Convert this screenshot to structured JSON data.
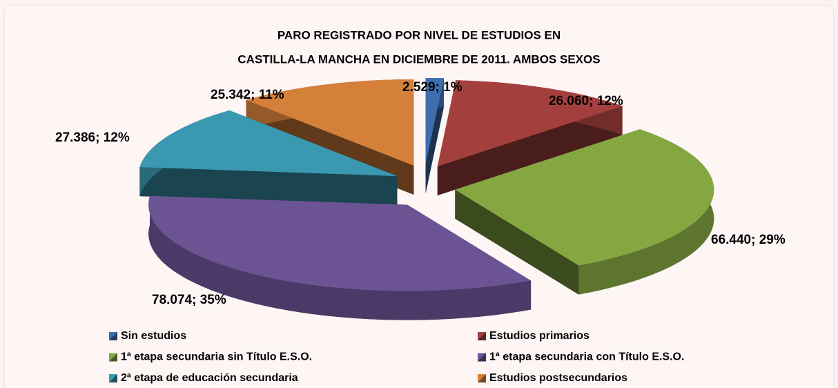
{
  "chart_data": {
    "type": "pie3d",
    "title": [
      "PARO REGISTRADO POR NIVEL DE ESTUDIOS EN",
      "CASTILLA-LA MANCHA EN DICIEMBRE DE 2011. AMBOS SEXOS"
    ],
    "categories": [
      "Sin estudios",
      "Estudios primarios",
      "1ª etapa secundaria sin Título E.S.O.",
      "1ª etapa secundaria con Título E.S.O.",
      "2ª etapa de educación secundaria",
      "Estudios postsecundarios"
    ],
    "values": [
      2529,
      26060,
      66440,
      78074,
      27386,
      25342
    ],
    "value_labels": [
      "2.529; 1%",
      "26.060; 12%",
      "66.440; 29%",
      "78.074; 35%",
      "27.386; 12%",
      "25.342; 11%"
    ],
    "colors": [
      "#3e6eae",
      "#a3403e",
      "#85a742",
      "#6b5394",
      "#3a98b0",
      "#d5803a"
    ],
    "legend": "bottom"
  }
}
